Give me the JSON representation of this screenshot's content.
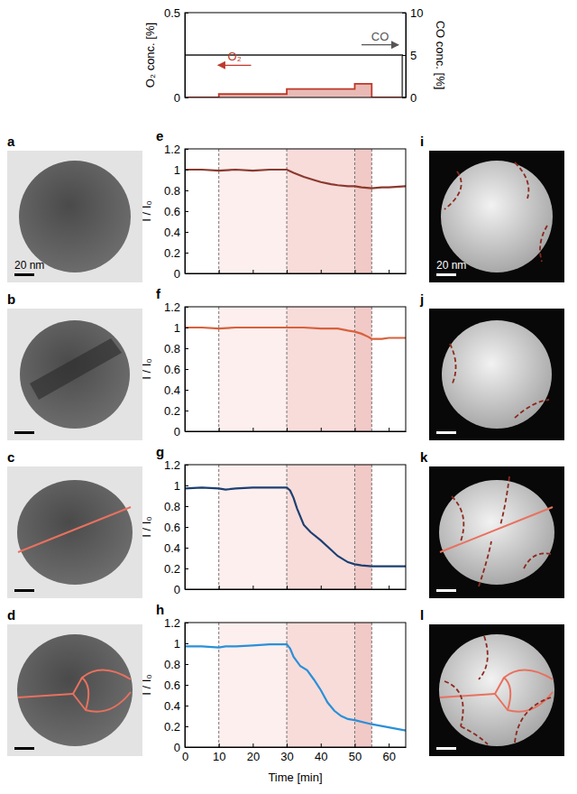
{
  "chart_data": [
    {
      "type": "line",
      "xlim": [
        0,
        65
      ],
      "ylim": [
        0,
        0.5
      ],
      "yticks": [
        0,
        0.5
      ],
      "y_label": "O₂ conc. [%]",
      "y2lim": [
        0,
        10
      ],
      "y2ticks": [
        0,
        5,
        10
      ],
      "y2_label": "CO conc. [%]",
      "series": [
        {
          "name": "O₂",
          "type": "area",
          "line_style": "step",
          "color": "#c0392b",
          "x": [
            0,
            10,
            30,
            50,
            55,
            65
          ],
          "values": [
            0,
            0.02,
            0.05,
            0.08,
            0,
            0
          ]
        },
        {
          "name": "CO",
          "axis": "y2",
          "line_style": "step",
          "color": "#555555",
          "x": [
            0,
            64,
            65
          ],
          "values": [
            5,
            0,
            0
          ]
        }
      ]
    },
    {
      "type": "line",
      "panel": "e",
      "xlim": [
        0,
        65
      ],
      "xticks": [
        0,
        10,
        20,
        30,
        40,
        50,
        60
      ],
      "ylim": [
        0,
        1.2
      ],
      "yticks": [
        0,
        0.2,
        0.4,
        0.6,
        0.8,
        1,
        1.2
      ],
      "y_label": "I / I₀",
      "tick_labels": "y",
      "bands": [
        [
          10,
          30
        ],
        [
          30,
          50
        ],
        [
          50,
          55
        ]
      ],
      "series": [
        {
          "color": "#8b3a2e",
          "x": [
            0,
            5,
            10,
            15,
            20,
            25,
            30,
            32,
            35,
            38,
            40,
            43,
            45,
            48,
            50,
            52,
            55,
            58,
            60,
            65
          ],
          "values": [
            1,
            1,
            0.99,
            1,
            0.99,
            1,
            1,
            0.97,
            0.93,
            0.9,
            0.88,
            0.86,
            0.85,
            0.84,
            0.84,
            0.83,
            0.82,
            0.83,
            0.83,
            0.84
          ]
        }
      ]
    },
    {
      "type": "line",
      "panel": "f",
      "xlim": [
        0,
        65
      ],
      "xticks": [
        0,
        10,
        20,
        30,
        40,
        50,
        60
      ],
      "ylim": [
        0,
        1.2
      ],
      "yticks": [
        0,
        0.2,
        0.4,
        0.6,
        0.8,
        1,
        1.2
      ],
      "y_label": "I / I₀",
      "tick_labels": "y",
      "bands": [
        [
          10,
          30
        ],
        [
          30,
          50
        ],
        [
          50,
          55
        ]
      ],
      "series": [
        {
          "color": "#d9603b",
          "x": [
            0,
            5,
            10,
            15,
            20,
            25,
            30,
            35,
            40,
            45,
            48,
            50,
            52,
            54,
            55,
            58,
            60,
            65
          ],
          "values": [
            1,
            1,
            0.99,
            1,
            1,
            1,
            1,
            1,
            0.99,
            0.99,
            0.97,
            0.96,
            0.94,
            0.91,
            0.89,
            0.89,
            0.9,
            0.9
          ]
        }
      ]
    },
    {
      "type": "line",
      "panel": "g",
      "xlim": [
        0,
        65
      ],
      "xticks": [
        0,
        10,
        20,
        30,
        40,
        50,
        60
      ],
      "ylim": [
        0,
        1.2
      ],
      "yticks": [
        0,
        0.2,
        0.4,
        0.6,
        0.8,
        1,
        1.2
      ],
      "y_label": "I / I₀",
      "tick_labels": "y",
      "bands": [
        [
          10,
          30
        ],
        [
          30,
          50
        ],
        [
          50,
          55
        ]
      ],
      "series": [
        {
          "color": "#1d3f72",
          "x": [
            0,
            5,
            10,
            12,
            15,
            20,
            25,
            30,
            31,
            32,
            33,
            35,
            37,
            40,
            43,
            45,
            48,
            50,
            52,
            55,
            60,
            65
          ],
          "values": [
            0.97,
            0.98,
            0.97,
            0.96,
            0.97,
            0.98,
            0.98,
            0.98,
            0.95,
            0.88,
            0.78,
            0.62,
            0.55,
            0.47,
            0.38,
            0.32,
            0.26,
            0.24,
            0.23,
            0.22,
            0.22,
            0.22
          ]
        }
      ]
    },
    {
      "type": "line",
      "panel": "h",
      "xlim": [
        0,
        65
      ],
      "xticks": [
        0,
        10,
        20,
        30,
        40,
        50,
        60
      ],
      "ylim": [
        0,
        1.2
      ],
      "yticks": [
        0,
        0.2,
        0.4,
        0.6,
        0.8,
        1,
        1.2
      ],
      "y_label": "I / I₀",
      "x_label": "Time [min]",
      "bands": [
        [
          10,
          30
        ],
        [
          30,
          50
        ],
        [
          50,
          55
        ]
      ],
      "series": [
        {
          "color": "#2a90d8",
          "x": [
            0,
            5,
            10,
            12,
            15,
            20,
            25,
            30,
            31,
            32,
            34,
            36,
            38,
            40,
            42,
            44,
            46,
            48,
            50,
            55,
            60,
            65
          ],
          "values": [
            0.97,
            0.97,
            0.96,
            0.97,
            0.97,
            0.98,
            0.99,
            0.99,
            0.95,
            0.87,
            0.78,
            0.74,
            0.65,
            0.55,
            0.43,
            0.35,
            0.3,
            0.27,
            0.26,
            0.22,
            0.19,
            0.16
          ]
        }
      ]
    }
  ],
  "left_images": [
    {
      "panel": "a",
      "scale_bar": "20 nm"
    },
    {
      "panel": "b"
    },
    {
      "panel": "c"
    },
    {
      "panel": "d"
    }
  ],
  "right_images": [
    {
      "panel": "i",
      "scale_bar": "20 nm"
    },
    {
      "panel": "j"
    },
    {
      "panel": "k"
    },
    {
      "panel": "l"
    }
  ]
}
